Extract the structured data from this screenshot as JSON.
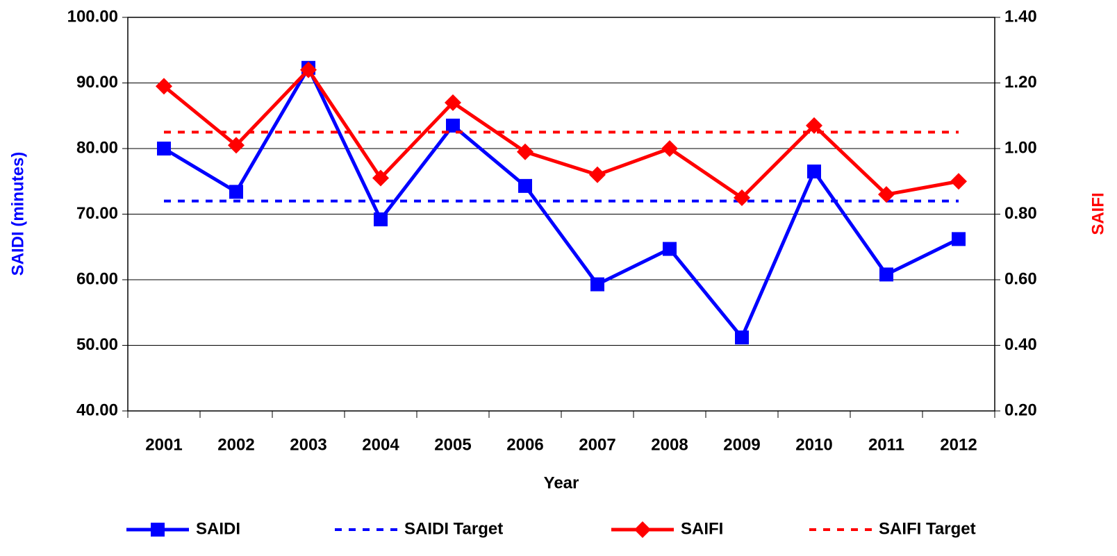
{
  "chart_data": {
    "type": "line",
    "x_label": "Year",
    "y_label": "SAIDI (minutes)",
    "y2_label": "SAIFI",
    "categories": [
      "2001",
      "2002",
      "2003",
      "2004",
      "2005",
      "2006",
      "2007",
      "2008",
      "2009",
      "2010",
      "2011",
      "2012"
    ],
    "series": [
      {
        "name": "SAIDI",
        "color": "#0000ff",
        "marker": "square",
        "dashed": false,
        "values": [
          80.0,
          73.4,
          92.3,
          69.2,
          83.5,
          74.3,
          59.3,
          64.7,
          51.2,
          76.5,
          60.8,
          66.2
        ]
      },
      {
        "name": "SAIDI Target",
        "color": "#0000ff",
        "marker": null,
        "dashed": true,
        "values": [
          72.0,
          72.0,
          72.0,
          72.0,
          72.0,
          72.0,
          72.0,
          72.0,
          72.0,
          72.0,
          72.0,
          72.0
        ]
      },
      {
        "name": "SAIFI",
        "color": "#ff0000",
        "marker": "diamond",
        "dashed": false,
        "axis": "y2",
        "values": [
          1.19,
          1.01,
          1.24,
          0.91,
          1.14,
          0.99,
          0.92,
          1.0,
          0.85,
          1.07,
          0.86,
          0.9
        ]
      },
      {
        "name": "SAIFI Target",
        "color": "#ff0000",
        "marker": null,
        "dashed": true,
        "axis": "y2",
        "values": [
          1.05,
          1.05,
          1.05,
          1.05,
          1.05,
          1.05,
          1.05,
          1.05,
          1.05,
          1.05,
          1.05,
          1.05
        ]
      }
    ],
    "ylim": [
      40,
      100
    ],
    "yticks": [
      {
        "value": 40,
        "label": "40.00"
      },
      {
        "value": 50,
        "label": "50.00"
      },
      {
        "value": 60,
        "label": "60.00"
      },
      {
        "value": 70,
        "label": "70.00"
      },
      {
        "value": 80,
        "label": "80.00"
      },
      {
        "value": 90,
        "label": "90.00"
      },
      {
        "value": 100,
        "label": "100.00"
      }
    ],
    "y2lim": [
      0.2,
      1.4
    ],
    "y2ticks": [
      {
        "value": 0.2,
        "label": "0.20"
      },
      {
        "value": 0.4,
        "label": "0.40"
      },
      {
        "value": 0.6,
        "label": "0.60"
      },
      {
        "value": 0.8,
        "label": "0.80"
      },
      {
        "value": 1.0,
        "label": "1.00"
      },
      {
        "value": 1.2,
        "label": "1.20"
      },
      {
        "value": 1.4,
        "label": "1.40"
      }
    ],
    "grid": true,
    "legend": "bottom"
  }
}
